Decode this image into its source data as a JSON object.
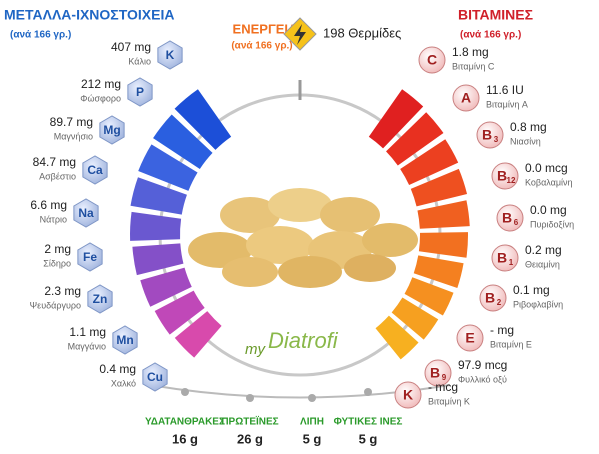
{
  "minerals": {
    "title": "ΜΕΤΑΛΛΑ-ΙΧΝΟΣΤΟΙΧΕΙΑ",
    "subtitle": "(ανά 166 γρ.)",
    "items": [
      {
        "amount": "407 mg",
        "name": "Κάλιο",
        "symbol": "K"
      },
      {
        "amount": "212 mg",
        "name": "Φώσφορο",
        "symbol": "P"
      },
      {
        "amount": "89.7 mg",
        "name": "Μαγνήσιο",
        "symbol": "Mg"
      },
      {
        "amount": "84.7 mg",
        "name": "Ασβέστιο",
        "symbol": "Ca"
      },
      {
        "amount": "6.6 mg",
        "name": "Νάτριο",
        "symbol": "Na"
      },
      {
        "amount": "2 mg",
        "name": "Σίδηρο",
        "symbol": "Fe"
      },
      {
        "amount": "2.3 mg",
        "name": "Ψευδάργυρο",
        "symbol": "Zn"
      },
      {
        "amount": "1.1 mg",
        "name": "Μαγγάνιο",
        "symbol": "Mn"
      },
      {
        "amount": "0.4 mg",
        "name": "Χαλκό",
        "symbol": "Cu"
      }
    ]
  },
  "vitamins": {
    "title": "ΒΙΤΑΜΙΝΕΣ",
    "subtitle": "(ανά 166 γρ.)",
    "items": [
      {
        "amount": "1.8 mg",
        "name": "Βιταμίνη C",
        "symbol": "C"
      },
      {
        "amount": "11.6 IU",
        "name": "Βιταμίνη A",
        "symbol": "A"
      },
      {
        "amount": "0.8 mg",
        "name": "Νιασίνη",
        "symbol": "B",
        "sub": "3"
      },
      {
        "amount": "0.0 mcg",
        "name": "Κοβαλαμίνη",
        "symbol": "B",
        "sub": "12"
      },
      {
        "amount": "0.0 mg",
        "name": "Πυριδοξίνη",
        "symbol": "B",
        "sub": "6"
      },
      {
        "amount": "0.2 mg",
        "name": "Θειαμίνη",
        "symbol": "B",
        "sub": "1"
      },
      {
        "amount": "0.1 mg",
        "name": "Ριβοφλαβίνη",
        "symbol": "B",
        "sub": "2"
      },
      {
        "amount": "- mg",
        "name": "Βιταμίνη E",
        "symbol": "E"
      },
      {
        "amount": "97.9 mcg",
        "name": "Φυλλικό οξύ",
        "symbol": "B",
        "sub": "9"
      },
      {
        "amount": "- mcg",
        "name": "Βιταμίνη K",
        "symbol": "K"
      }
    ]
  },
  "energy": {
    "title": "ΕΝΕΡΓΕΙΑ",
    "subtitle": "(ανά 166 γρ.)",
    "value": "198 Θερμίδες"
  },
  "macros": [
    {
      "label": "ΥΔΑΤΑΝΘΡΑΚΕΣ",
      "value": "16 g"
    },
    {
      "label": "ΠΡΩΤΕΪΝΕΣ",
      "value": "26 g"
    },
    {
      "label": "ΛΙΠΗ",
      "value": "5 g"
    },
    {
      "label": "ΦΥΤΙΚΕΣ ΙΝΕΣ",
      "value": "5 g"
    }
  ],
  "logo": {
    "prefix": "my",
    "name": "Diatrofi"
  }
}
